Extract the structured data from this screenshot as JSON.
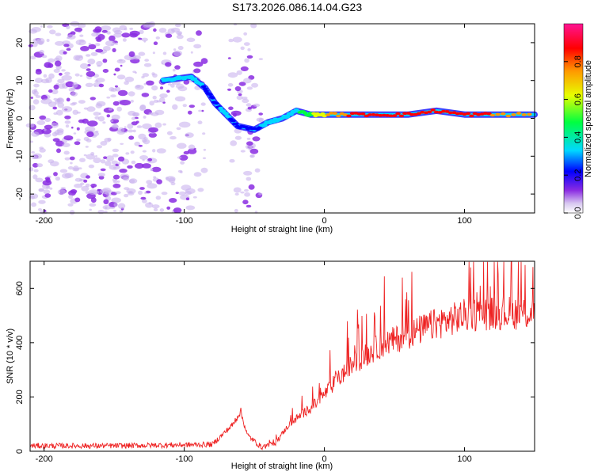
{
  "title": "S173.2026.086.14.04.G23",
  "colors": {
    "snr_line": "#ee2222",
    "axis": "#000000"
  },
  "chart_data": [
    {
      "type": "heatmap",
      "name": "spectrogram",
      "xlabel": "Height of straight line (km)",
      "ylabel": "Frequency (Hz)",
      "xlim": [
        -210,
        150
      ],
      "ylim": [
        -25,
        25
      ],
      "xticks": [
        -200,
        -100,
        0,
        100
      ],
      "yticks": [
        -20,
        -10,
        0,
        10,
        20
      ],
      "colorbar": {
        "label": "Normalized spectral amplitude",
        "range": [
          0.0,
          1.0
        ],
        "ticks": [
          "0.0",
          "0.2",
          "0.4",
          "0.6",
          "0.8"
        ]
      },
      "ridge": [
        {
          "x": -115,
          "y": 10,
          "a": 0.25
        },
        {
          "x": -105,
          "y": 10.5,
          "a": 0.3
        },
        {
          "x": -95,
          "y": 11,
          "a": 0.3
        },
        {
          "x": -85,
          "y": 8,
          "a": 0.2
        },
        {
          "x": -78,
          "y": 4,
          "a": 0.2
        },
        {
          "x": -70,
          "y": 1,
          "a": 0.25
        },
        {
          "x": -62,
          "y": -2,
          "a": 0.15
        },
        {
          "x": -50,
          "y": -3,
          "a": 0.2
        },
        {
          "x": -40,
          "y": -1,
          "a": 0.25
        },
        {
          "x": -30,
          "y": 0,
          "a": 0.3
        },
        {
          "x": -20,
          "y": 2,
          "a": 0.3
        },
        {
          "x": -10,
          "y": 1,
          "a": 0.45
        },
        {
          "x": 0,
          "y": 1,
          "a": 0.6
        },
        {
          "x": 20,
          "y": 1,
          "a": 0.8
        },
        {
          "x": 40,
          "y": 1,
          "a": 0.85
        },
        {
          "x": 60,
          "y": 1,
          "a": 0.8
        },
        {
          "x": 80,
          "y": 2,
          "a": 0.85
        },
        {
          "x": 100,
          "y": 1,
          "a": 0.8
        },
        {
          "x": 120,
          "y": 1,
          "a": 0.75
        },
        {
          "x": 150,
          "y": 1,
          "a": 0.7
        }
      ]
    },
    {
      "type": "line",
      "name": "snr",
      "xlabel": "Height of straight line (km)",
      "ylabel": "SNR (10 * v/v)",
      "xlim": [
        -210,
        150
      ],
      "ylim": [
        0,
        700
      ],
      "xticks": [
        -200,
        -100,
        0,
        100
      ],
      "yticks": [
        0,
        200,
        400,
        600
      ],
      "series": [
        {
          "name": "SNR",
          "x": [
            -210,
            -150,
            -80,
            -65,
            -60,
            -55,
            -45,
            -35,
            -25,
            -15,
            -5,
            5,
            20,
            40,
            60,
            80,
            100,
            120,
            150
          ],
          "y": [
            20,
            20,
            25,
            100,
            150,
            60,
            15,
            30,
            100,
            140,
            180,
            240,
            320,
            390,
            430,
            470,
            500,
            510,
            510
          ]
        }
      ]
    }
  ]
}
